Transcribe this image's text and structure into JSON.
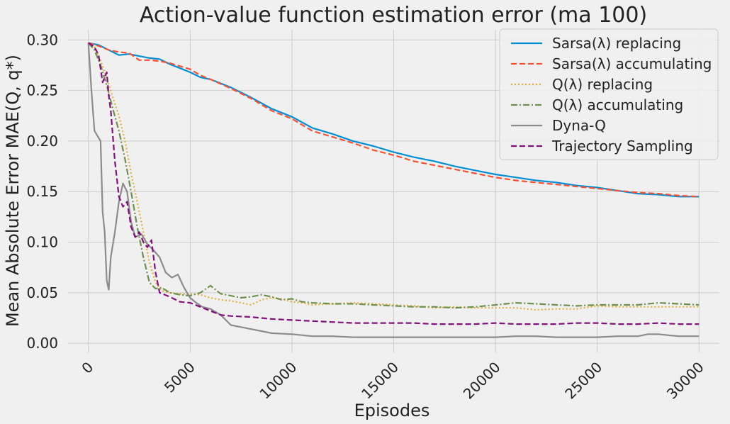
{
  "chart_data": {
    "type": "line",
    "title": "Action-value function estimation error (ma 100)",
    "xlabel": "Episodes",
    "ylabel": "Mean Absolute Error MAE(Q, q*)",
    "xlim": [
      -1000,
      31000
    ],
    "ylim": [
      -0.009,
      0.31
    ],
    "xticks": [
      0,
      5000,
      10000,
      15000,
      20000,
      25000,
      30000
    ],
    "yticks": [
      0.0,
      0.05,
      0.1,
      0.15,
      0.2,
      0.25,
      0.3
    ],
    "xtick_labels": [
      "0",
      "5000",
      "10000",
      "15000",
      "20000",
      "25000",
      "30000"
    ],
    "ytick_labels": [
      "0.00",
      "0.05",
      "0.10",
      "0.15",
      "0.20",
      "0.25",
      "0.30"
    ],
    "grid": true,
    "legend_position": "top-right",
    "series": [
      {
        "name": "Sarsa(λ) replacing",
        "color": "#008fd5",
        "dash": "solid",
        "points": [
          [
            0,
            0.297
          ],
          [
            500,
            0.295
          ],
          [
            1000,
            0.29
          ],
          [
            1500,
            0.285
          ],
          [
            2000,
            0.286
          ],
          [
            2500,
            0.284
          ],
          [
            3000,
            0.282
          ],
          [
            3500,
            0.281
          ],
          [
            4000,
            0.276
          ],
          [
            4500,
            0.272
          ],
          [
            5000,
            0.268
          ],
          [
            5500,
            0.263
          ],
          [
            6000,
            0.261
          ],
          [
            7000,
            0.253
          ],
          [
            8000,
            0.243
          ],
          [
            9000,
            0.232
          ],
          [
            10000,
            0.224
          ],
          [
            11000,
            0.213
          ],
          [
            12000,
            0.207
          ],
          [
            13000,
            0.2
          ],
          [
            14000,
            0.195
          ],
          [
            15000,
            0.189
          ],
          [
            16000,
            0.184
          ],
          [
            17000,
            0.18
          ],
          [
            18000,
            0.175
          ],
          [
            19000,
            0.171
          ],
          [
            20000,
            0.167
          ],
          [
            21000,
            0.164
          ],
          [
            22000,
            0.161
          ],
          [
            23000,
            0.159
          ],
          [
            24000,
            0.156
          ],
          [
            25000,
            0.154
          ],
          [
            26000,
            0.151
          ],
          [
            27000,
            0.148
          ],
          [
            28000,
            0.147
          ],
          [
            29000,
            0.145
          ],
          [
            30000,
            0.145
          ]
        ]
      },
      {
        "name": "Sarsa(λ) accumulating",
        "color": "#fc4f30",
        "dash": "dashed",
        "points": [
          [
            0,
            0.297
          ],
          [
            500,
            0.294
          ],
          [
            1000,
            0.29
          ],
          [
            1500,
            0.288
          ],
          [
            2000,
            0.287
          ],
          [
            2500,
            0.28
          ],
          [
            3000,
            0.28
          ],
          [
            3500,
            0.279
          ],
          [
            4000,
            0.277
          ],
          [
            4500,
            0.274
          ],
          [
            5000,
            0.271
          ],
          [
            5500,
            0.265
          ],
          [
            6000,
            0.261
          ],
          [
            7000,
            0.252
          ],
          [
            8000,
            0.242
          ],
          [
            9000,
            0.23
          ],
          [
            10000,
            0.222
          ],
          [
            11000,
            0.21
          ],
          [
            12000,
            0.204
          ],
          [
            13000,
            0.198
          ],
          [
            14000,
            0.191
          ],
          [
            15000,
            0.186
          ],
          [
            16000,
            0.18
          ],
          [
            17000,
            0.176
          ],
          [
            18000,
            0.172
          ],
          [
            19000,
            0.168
          ],
          [
            20000,
            0.164
          ],
          [
            21000,
            0.161
          ],
          [
            22000,
            0.159
          ],
          [
            23000,
            0.157
          ],
          [
            24000,
            0.155
          ],
          [
            25000,
            0.153
          ],
          [
            26000,
            0.151
          ],
          [
            27000,
            0.149
          ],
          [
            28000,
            0.148
          ],
          [
            29000,
            0.146
          ],
          [
            30000,
            0.145
          ]
        ]
      },
      {
        "name": "Q(λ) replacing",
        "color": "#e5ae38",
        "dash": "dotted",
        "points": [
          [
            0,
            0.297
          ],
          [
            300,
            0.293
          ],
          [
            600,
            0.28
          ],
          [
            900,
            0.262
          ],
          [
            1200,
            0.243
          ],
          [
            1500,
            0.225
          ],
          [
            1800,
            0.2
          ],
          [
            2100,
            0.168
          ],
          [
            2400,
            0.14
          ],
          [
            2700,
            0.11
          ],
          [
            3000,
            0.08
          ],
          [
            3300,
            0.06
          ],
          [
            3600,
            0.052
          ],
          [
            4000,
            0.05
          ],
          [
            4500,
            0.049
          ],
          [
            5000,
            0.049
          ],
          [
            5500,
            0.048
          ],
          [
            6000,
            0.045
          ],
          [
            6500,
            0.043
          ],
          [
            7000,
            0.042
          ],
          [
            7500,
            0.04
          ],
          [
            8000,
            0.038
          ],
          [
            8500,
            0.043
          ],
          [
            9000,
            0.045
          ],
          [
            9500,
            0.044
          ],
          [
            10000,
            0.041
          ],
          [
            10500,
            0.04
          ],
          [
            11000,
            0.038
          ],
          [
            12000,
            0.039
          ],
          [
            13000,
            0.04
          ],
          [
            14000,
            0.039
          ],
          [
            15000,
            0.038
          ],
          [
            16000,
            0.037
          ],
          [
            17000,
            0.035
          ],
          [
            18000,
            0.036
          ],
          [
            19000,
            0.035
          ],
          [
            20000,
            0.035
          ],
          [
            21000,
            0.035
          ],
          [
            22000,
            0.033
          ],
          [
            23000,
            0.034
          ],
          [
            24000,
            0.034
          ],
          [
            25000,
            0.037
          ],
          [
            26000,
            0.036
          ],
          [
            27000,
            0.036
          ],
          [
            28000,
            0.036
          ],
          [
            29000,
            0.036
          ],
          [
            30000,
            0.036
          ]
        ]
      },
      {
        "name": "Q(λ) accumulating",
        "color": "#6d904f",
        "dash": "dashdot",
        "points": [
          [
            0,
            0.297
          ],
          [
            300,
            0.29
          ],
          [
            600,
            0.275
          ],
          [
            900,
            0.255
          ],
          [
            1200,
            0.232
          ],
          [
            1500,
            0.21
          ],
          [
            1800,
            0.182
          ],
          [
            2100,
            0.15
          ],
          [
            2400,
            0.115
          ],
          [
            2700,
            0.085
          ],
          [
            3000,
            0.06
          ],
          [
            3300,
            0.054
          ],
          [
            3600,
            0.055
          ],
          [
            4000,
            0.05
          ],
          [
            4500,
            0.048
          ],
          [
            5000,
            0.047
          ],
          [
            5500,
            0.05
          ],
          [
            6000,
            0.057
          ],
          [
            6500,
            0.049
          ],
          [
            7000,
            0.047
          ],
          [
            7500,
            0.045
          ],
          [
            8000,
            0.046
          ],
          [
            8500,
            0.048
          ],
          [
            9000,
            0.046
          ],
          [
            9500,
            0.043
          ],
          [
            10000,
            0.044
          ],
          [
            10500,
            0.041
          ],
          [
            11000,
            0.04
          ],
          [
            12000,
            0.039
          ],
          [
            13000,
            0.039
          ],
          [
            14000,
            0.038
          ],
          [
            15000,
            0.037
          ],
          [
            16000,
            0.036
          ],
          [
            17000,
            0.036
          ],
          [
            18000,
            0.035
          ],
          [
            19000,
            0.036
          ],
          [
            20000,
            0.038
          ],
          [
            21000,
            0.04
          ],
          [
            22000,
            0.039
          ],
          [
            23000,
            0.038
          ],
          [
            24000,
            0.037
          ],
          [
            25000,
            0.038
          ],
          [
            26000,
            0.038
          ],
          [
            27000,
            0.038
          ],
          [
            28000,
            0.04
          ],
          [
            29000,
            0.039
          ],
          [
            30000,
            0.038
          ]
        ]
      },
      {
        "name": "Dyna-Q",
        "color": "#8b8b8b",
        "dash": "solid",
        "points": [
          [
            0,
            0.297
          ],
          [
            150,
            0.25
          ],
          [
            300,
            0.21
          ],
          [
            450,
            0.205
          ],
          [
            600,
            0.2
          ],
          [
            700,
            0.13
          ],
          [
            800,
            0.11
          ],
          [
            900,
            0.062
          ],
          [
            1000,
            0.053
          ],
          [
            1100,
            0.085
          ],
          [
            1300,
            0.11
          ],
          [
            1500,
            0.14
          ],
          [
            1700,
            0.158
          ],
          [
            1900,
            0.15
          ],
          [
            2100,
            0.12
          ],
          [
            2300,
            0.105
          ],
          [
            2600,
            0.108
          ],
          [
            2900,
            0.098
          ],
          [
            3200,
            0.092
          ],
          [
            3500,
            0.085
          ],
          [
            3800,
            0.07
          ],
          [
            4100,
            0.065
          ],
          [
            4400,
            0.068
          ],
          [
            4700,
            0.055
          ],
          [
            5000,
            0.045
          ],
          [
            5300,
            0.04
          ],
          [
            5600,
            0.036
          ],
          [
            6000,
            0.034
          ],
          [
            6500,
            0.028
          ],
          [
            7000,
            0.018
          ],
          [
            7500,
            0.016
          ],
          [
            8000,
            0.014
          ],
          [
            8500,
            0.012
          ],
          [
            9000,
            0.01
          ],
          [
            10000,
            0.009
          ],
          [
            11000,
            0.007
          ],
          [
            12000,
            0.007
          ],
          [
            13000,
            0.006
          ],
          [
            14000,
            0.006
          ],
          [
            15000,
            0.006
          ],
          [
            16000,
            0.006
          ],
          [
            17000,
            0.006
          ],
          [
            18000,
            0.006
          ],
          [
            19000,
            0.006
          ],
          [
            20000,
            0.006
          ],
          [
            21000,
            0.007
          ],
          [
            22000,
            0.007
          ],
          [
            23000,
            0.006
          ],
          [
            24000,
            0.006
          ],
          [
            25000,
            0.006
          ],
          [
            26000,
            0.007
          ],
          [
            27000,
            0.007
          ],
          [
            27500,
            0.009
          ],
          [
            28000,
            0.009
          ],
          [
            28500,
            0.008
          ],
          [
            29000,
            0.007
          ],
          [
            30000,
            0.007
          ]
        ]
      },
      {
        "name": "Trajectory Sampling",
        "color": "#810f7c",
        "dash": "dashed",
        "points": [
          [
            0,
            0.297
          ],
          [
            300,
            0.293
          ],
          [
            500,
            0.285
          ],
          [
            700,
            0.258
          ],
          [
            900,
            0.268
          ],
          [
            1000,
            0.245
          ],
          [
            1100,
            0.23
          ],
          [
            1300,
            0.18
          ],
          [
            1500,
            0.145
          ],
          [
            1700,
            0.135
          ],
          [
            1900,
            0.14
          ],
          [
            2100,
            0.115
          ],
          [
            2300,
            0.105
          ],
          [
            2500,
            0.11
          ],
          [
            2700,
            0.1
          ],
          [
            2900,
            0.095
          ],
          [
            3100,
            0.102
          ],
          [
            3300,
            0.07
          ],
          [
            3500,
            0.05
          ],
          [
            4000,
            0.046
          ],
          [
            4500,
            0.041
          ],
          [
            5000,
            0.04
          ],
          [
            5500,
            0.036
          ],
          [
            6000,
            0.032
          ],
          [
            6500,
            0.028
          ],
          [
            7000,
            0.027
          ],
          [
            8000,
            0.026
          ],
          [
            9000,
            0.024
          ],
          [
            10000,
            0.023
          ],
          [
            11000,
            0.022
          ],
          [
            12000,
            0.021
          ],
          [
            13000,
            0.02
          ],
          [
            14000,
            0.02
          ],
          [
            15000,
            0.02
          ],
          [
            16000,
            0.02
          ],
          [
            17000,
            0.019
          ],
          [
            18000,
            0.019
          ],
          [
            19000,
            0.019
          ],
          [
            20000,
            0.02
          ],
          [
            21000,
            0.019
          ],
          [
            22000,
            0.019
          ],
          [
            23000,
            0.019
          ],
          [
            24000,
            0.02
          ],
          [
            25000,
            0.02
          ],
          [
            26000,
            0.019
          ],
          [
            27000,
            0.019
          ],
          [
            28000,
            0.02
          ],
          [
            29000,
            0.019
          ],
          [
            30000,
            0.019
          ]
        ]
      }
    ]
  }
}
